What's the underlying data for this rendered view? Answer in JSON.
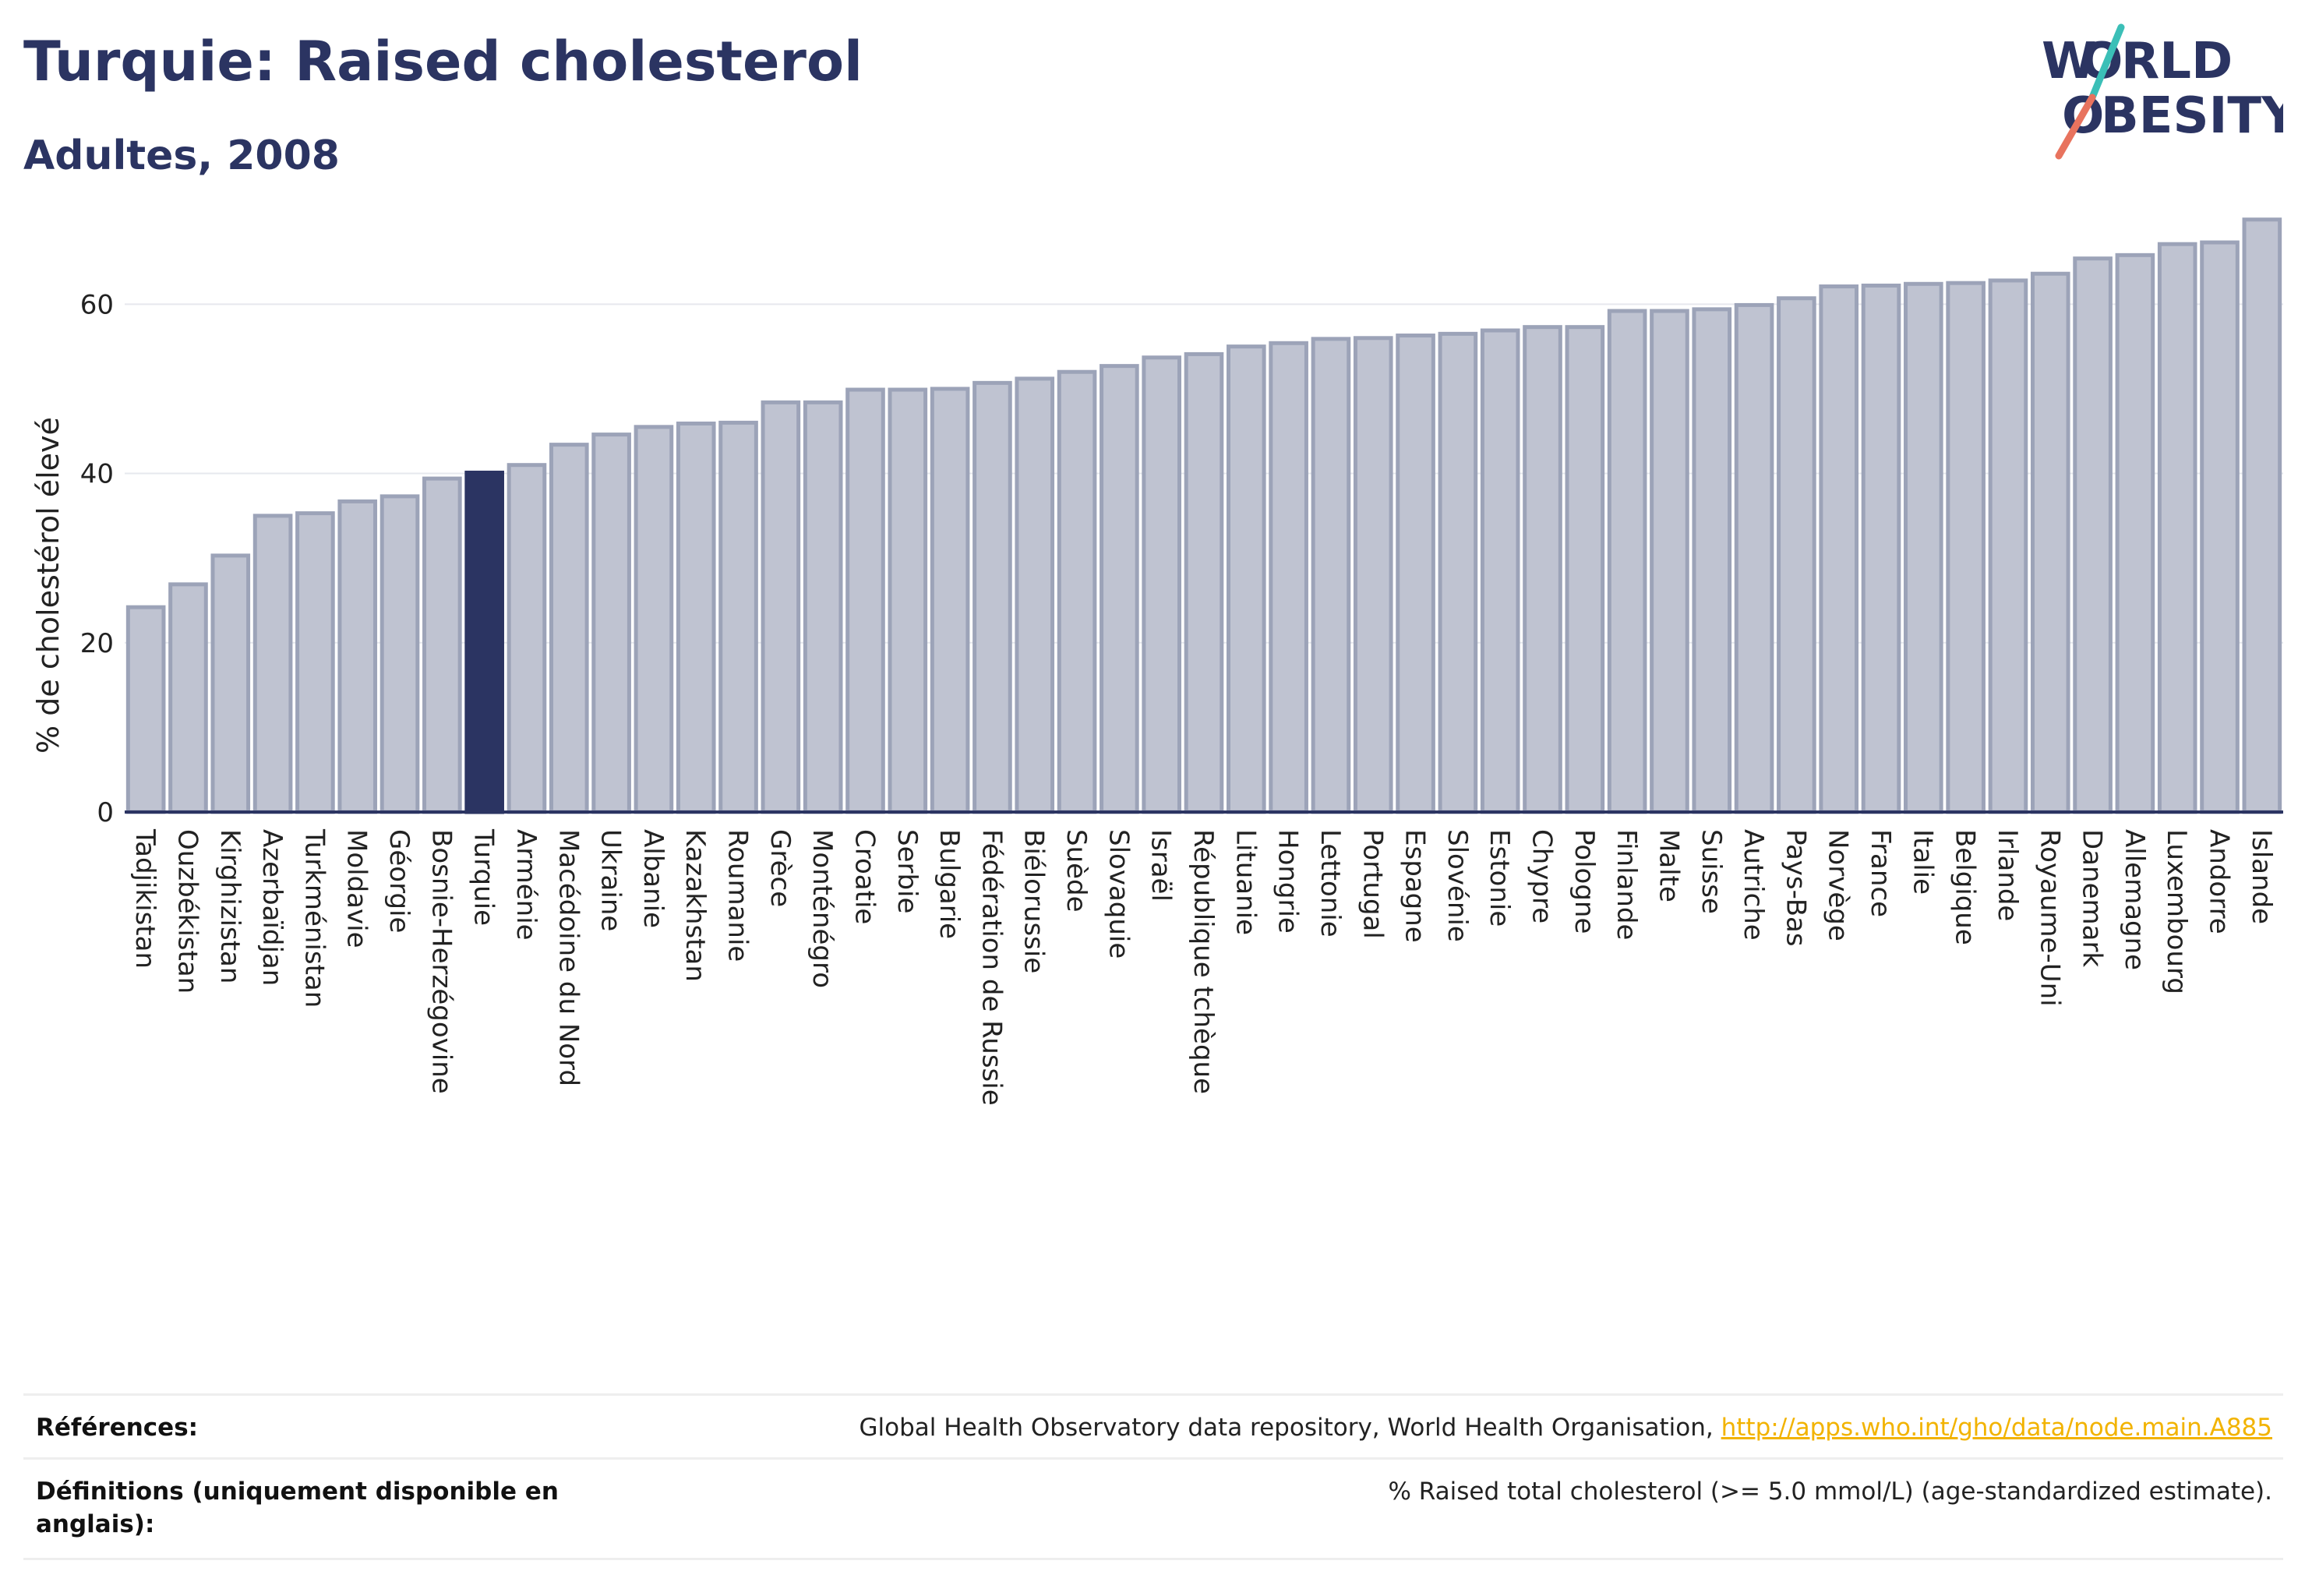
{
  "header": {
    "title": "Turquie: Raised cholesterol",
    "subtitle": "Adultes, 2008"
  },
  "logo": {
    "line1_a": "W",
    "line1_b": "RLD",
    "line2_b": "BESITY",
    "letter_o": "O"
  },
  "colors": {
    "bar": "#bfc3d1",
    "bar_stroke": "#9ca3b8",
    "highlight": "#2b3462",
    "axis": "#2b3462",
    "grid": "#e6e8ee",
    "logo_teal": "#3bbfb7",
    "logo_coral": "#e8735e"
  },
  "chart_data": {
    "type": "bar",
    "ylabel": "% de cholestérol élevé",
    "ylim": [
      0,
      72
    ],
    "yticks": [
      0,
      20,
      40,
      60
    ],
    "grid": true,
    "highlight": "Turquie",
    "categories": [
      "Tadjikistan",
      "Ouzbékistan",
      "Kirghizistan",
      "Azerbaïdjan",
      "Turkménistan",
      "Moldavie",
      "Géorgie",
      "Bosnie-Herzégovine",
      "Turquie",
      "Arménie",
      "Macédoine du Nord",
      "Ukraine",
      "Albanie",
      "Kazakhstan",
      "Roumanie",
      "Grèce",
      "Monténégro",
      "Croatie",
      "Serbie",
      "Bulgarie",
      "Fédération de Russie",
      "Biélorussie",
      "Suède",
      "Slovaquie",
      "Israël",
      "République tchèque",
      "Lituanie",
      "Hongrie",
      "Lettonie",
      "Portugal",
      "Espagne",
      "Slovénie",
      "Estonie",
      "Chypre",
      "Pologne",
      "Finlande",
      "Malte",
      "Suisse",
      "Autriche",
      "Pays-Bas",
      "Norvège",
      "France",
      "Italie",
      "Belgique",
      "Irlande",
      "Royaume-Uni",
      "Danemark",
      "Allemagne",
      "Luxembourg",
      "Andorre",
      "Islande"
    ],
    "values": [
      24.2,
      26.9,
      30.3,
      35.0,
      35.3,
      36.7,
      37.3,
      39.4,
      40.1,
      41.0,
      43.4,
      44.6,
      45.5,
      45.9,
      46.0,
      48.4,
      48.4,
      49.9,
      49.9,
      50.0,
      50.7,
      51.2,
      52.0,
      52.7,
      53.7,
      54.1,
      55.0,
      55.4,
      55.9,
      56.0,
      56.3,
      56.5,
      56.9,
      57.3,
      57.3,
      59.2,
      59.2,
      59.4,
      59.9,
      60.7,
      62.1,
      62.2,
      62.4,
      62.5,
      62.8,
      63.6,
      65.4,
      65.8,
      67.1,
      67.3,
      70.0
    ]
  },
  "footer": {
    "references_label": "Références:",
    "references_text": "Global Health Observatory data repository, World Health Organisation, ",
    "references_link": "http://apps.who.int/gho/data/node.main.A885",
    "definitions_label": "Définitions (uniquement disponible en anglais):",
    "definitions_text": "% Raised total cholesterol (>= 5.0 mmol/L) (age-standardized estimate)."
  }
}
